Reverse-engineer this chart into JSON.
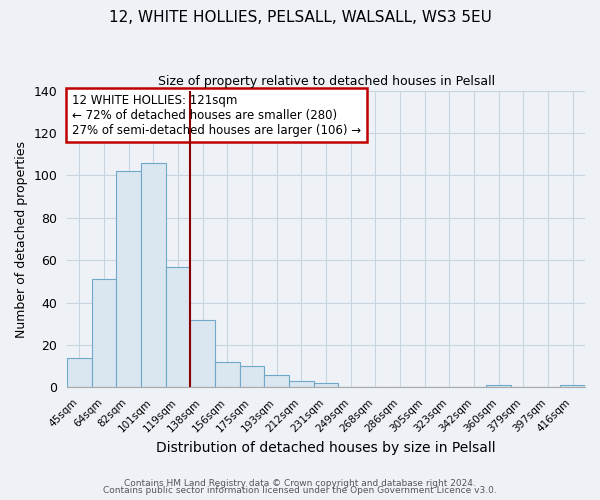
{
  "title": "12, WHITE HOLLIES, PELSALL, WALSALL, WS3 5EU",
  "subtitle": "Size of property relative to detached houses in Pelsall",
  "xlabel": "Distribution of detached houses by size in Pelsall",
  "ylabel": "Number of detached properties",
  "bar_labels": [
    "45sqm",
    "64sqm",
    "82sqm",
    "101sqm",
    "119sqm",
    "138sqm",
    "156sqm",
    "175sqm",
    "193sqm",
    "212sqm",
    "231sqm",
    "249sqm",
    "268sqm",
    "286sqm",
    "305sqm",
    "323sqm",
    "342sqm",
    "360sqm",
    "379sqm",
    "397sqm",
    "416sqm"
  ],
  "bar_values": [
    14,
    51,
    102,
    106,
    57,
    32,
    12,
    10,
    6,
    3,
    2,
    0,
    0,
    0,
    0,
    0,
    0,
    1,
    0,
    0,
    1
  ],
  "bar_color": "#dae6f0",
  "bar_edge_color": "#6fa8c8",
  "vline_x": 4.5,
  "vline_color": "#8b0000",
  "annotation_title": "12 WHITE HOLLIES: 121sqm",
  "annotation_line1": "← 72% of detached houses are smaller (280)",
  "annotation_line2": "27% of semi-detached houses are larger (106) →",
  "annotation_box_color": "white",
  "annotation_box_edge": "#c00000",
  "ylim": [
    0,
    140
  ],
  "yticks": [
    0,
    20,
    40,
    60,
    80,
    100,
    120,
    140
  ],
  "footer1": "Contains HM Land Registry data © Crown copyright and database right 2024.",
  "footer2": "Contains public sector information licensed under the Open Government Licence v3.0.",
  "background_color": "#eef2f7",
  "grid_color": "#c8d4e0",
  "title_fontsize": 11,
  "subtitle_fontsize": 9
}
